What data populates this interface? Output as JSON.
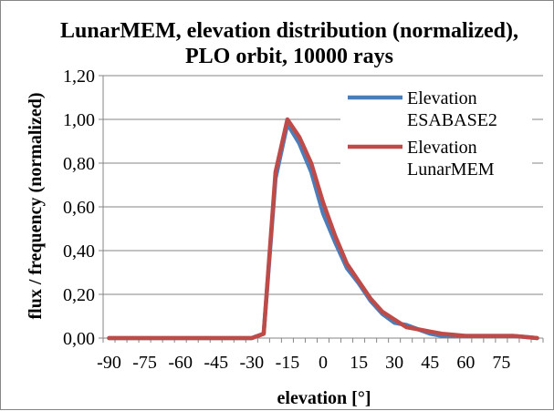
{
  "chart_data": {
    "type": "line",
    "title_line1": "LunarMEM, elevation distribution (normalized),",
    "title_line2": "PLO orbit, 10000 rays",
    "xlabel": "elevation [°]",
    "ylabel": "flux / frequency (normalized)",
    "xlim": [
      -92.5,
      92.5
    ],
    "ylim": [
      0,
      1.2
    ],
    "x_ticks": [
      -90,
      -75,
      -60,
      -45,
      -30,
      -15,
      0,
      15,
      30,
      45,
      60,
      75
    ],
    "x_tick_labels": [
      "-90",
      "-75",
      "-60",
      "-45",
      "-30",
      "-15",
      "0",
      "15",
      "30",
      "45",
      "60",
      "75"
    ],
    "y_ticks": [
      0,
      0.2,
      0.4,
      0.6,
      0.8,
      1.0,
      1.2
    ],
    "y_tick_labels": [
      "0,00",
      "0,20",
      "0,40",
      "0,60",
      "0,80",
      "1,00",
      "1,20"
    ],
    "grid": "horizontal",
    "legend_position": "top-right",
    "x": [
      -90,
      -85,
      -80,
      -75,
      -70,
      -65,
      -60,
      -55,
      -50,
      -45,
      -40,
      -35,
      -30,
      -25,
      -20,
      -15,
      -10,
      -5,
      0,
      5,
      10,
      15,
      20,
      25,
      30,
      35,
      40,
      45,
      50,
      55,
      60,
      65,
      70,
      75,
      80,
      85,
      90
    ],
    "series": [
      {
        "name": "Elevation ESABASE2",
        "color": "#4a7ebb",
        "values": [
          0,
          0,
          0,
          0,
          0,
          0,
          0,
          0,
          0,
          0,
          0,
          0,
          0,
          0.02,
          0.73,
          0.98,
          0.89,
          0.76,
          0.57,
          0.44,
          0.32,
          0.25,
          0.17,
          0.11,
          0.07,
          0.06,
          0.04,
          0.02,
          0.01,
          0.01,
          0.01,
          0.01,
          0.01,
          0.01,
          0.01,
          0.005,
          0
        ]
      },
      {
        "name": "Elevation LunarMEM",
        "color": "#be4b48",
        "values": [
          0,
          0,
          0,
          0,
          0,
          0,
          0,
          0,
          0,
          0,
          0,
          0,
          0,
          0.02,
          0.76,
          1.0,
          0.92,
          0.8,
          0.62,
          0.47,
          0.34,
          0.26,
          0.18,
          0.12,
          0.085,
          0.05,
          0.04,
          0.03,
          0.02,
          0.015,
          0.01,
          0.01,
          0.01,
          0.01,
          0.01,
          0.005,
          0
        ]
      }
    ]
  }
}
